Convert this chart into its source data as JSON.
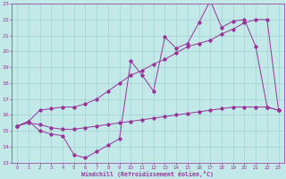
{
  "bg_color": "#c2e8e8",
  "line_color": "#993399",
  "grid_color": "#99cccc",
  "xlabel": "Windchill (Refroidissement éolien,°C)",
  "xlim": [
    -0.5,
    23.5
  ],
  "ylim": [
    13,
    23
  ],
  "xticks": [
    0,
    1,
    2,
    3,
    4,
    5,
    6,
    7,
    8,
    9,
    10,
    11,
    12,
    13,
    14,
    15,
    16,
    17,
    18,
    19,
    20,
    21,
    22,
    23
  ],
  "yticks": [
    13,
    14,
    15,
    16,
    17,
    18,
    19,
    20,
    21,
    22,
    23
  ],
  "line1_x": [
    0,
    1,
    2,
    3,
    4,
    5,
    6,
    7,
    8,
    9,
    10,
    11,
    12,
    13,
    14,
    15,
    16,
    17,
    18,
    19,
    20,
    21,
    22,
    23
  ],
  "line1_y": [
    15.3,
    15.6,
    15.0,
    14.8,
    14.7,
    13.5,
    13.3,
    13.7,
    14.1,
    14.5,
    19.4,
    18.5,
    17.5,
    20.9,
    20.2,
    20.5,
    21.8,
    23.2,
    21.5,
    21.9,
    22.0,
    20.3,
    16.5,
    16.3
  ],
  "line2_x": [
    0,
    1,
    2,
    3,
    4,
    5,
    6,
    7,
    8,
    9,
    10,
    11,
    12,
    13,
    14,
    15,
    16,
    17,
    18,
    19,
    20,
    21,
    22,
    23
  ],
  "line2_y": [
    15.3,
    15.6,
    16.3,
    16.4,
    16.5,
    16.5,
    16.7,
    17.0,
    17.5,
    18.0,
    18.5,
    18.8,
    19.2,
    19.5,
    19.9,
    20.3,
    20.5,
    20.7,
    21.1,
    21.4,
    21.8,
    22.0,
    22.0,
    16.3
  ],
  "line3_x": [
    0,
    1,
    2,
    3,
    4,
    5,
    6,
    7,
    8,
    9,
    10,
    11,
    12,
    13,
    14,
    15,
    16,
    17,
    18,
    19,
    20,
    21,
    22,
    23
  ],
  "line3_y": [
    15.3,
    15.5,
    15.4,
    15.2,
    15.1,
    15.1,
    15.2,
    15.3,
    15.4,
    15.5,
    15.6,
    15.7,
    15.8,
    15.9,
    16.0,
    16.1,
    16.2,
    16.3,
    16.4,
    16.5,
    16.5,
    16.5,
    16.5,
    16.3
  ]
}
